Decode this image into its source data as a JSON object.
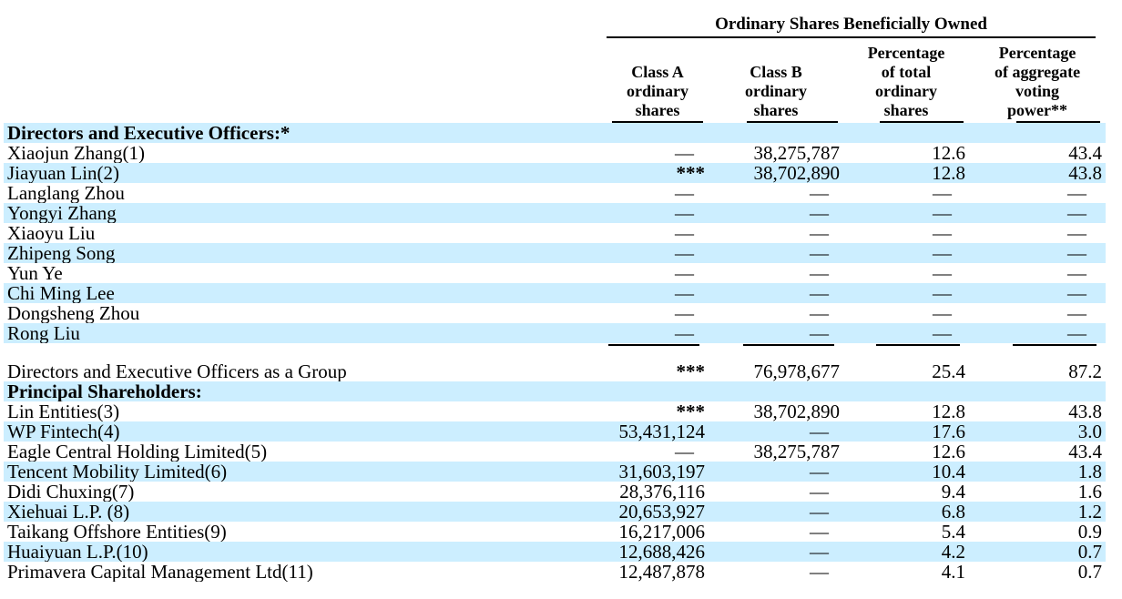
{
  "table": {
    "title": "Ordinary Shares Beneficially Owned",
    "columns": [
      {
        "label": "Class A\nordinary\nshares"
      },
      {
        "label": "Class B\nordinary\nshares"
      },
      {
        "label": "Percentage\nof total\nordinary\nshares"
      },
      {
        "label": "Percentage\nof aggregate\nvoting\npower**"
      }
    ],
    "rows": [
      {
        "type": "section",
        "shaded": true,
        "label": "Directors and Executive Officers:*",
        "values": [
          "",
          "",
          "",
          ""
        ]
      },
      {
        "type": "data",
        "shaded": false,
        "label": "Xiaojun Zhang(1)",
        "values": [
          "—",
          "38,275,787",
          "12.6",
          "43.4"
        ]
      },
      {
        "type": "data",
        "shaded": true,
        "label": "Jiayuan Lin(2)",
        "values": [
          "***",
          "38,702,890",
          "12.8",
          "43.8"
        ]
      },
      {
        "type": "data",
        "shaded": false,
        "label": "Langlang Zhou",
        "values": [
          "—",
          "—",
          "—",
          "—"
        ]
      },
      {
        "type": "data",
        "shaded": true,
        "label": "Yongyi Zhang",
        "values": [
          "—",
          "—",
          "—",
          "—"
        ]
      },
      {
        "type": "data",
        "shaded": false,
        "label": "Xiaoyu Liu",
        "values": [
          "—",
          "—",
          "—",
          "—"
        ]
      },
      {
        "type": "data",
        "shaded": true,
        "label": "Zhipeng Song",
        "values": [
          "—",
          "—",
          "—",
          "—"
        ]
      },
      {
        "type": "data",
        "shaded": false,
        "label": "Yun Ye",
        "values": [
          "—",
          "—",
          "—",
          "—"
        ]
      },
      {
        "type": "data",
        "shaded": true,
        "label": "Chi Ming Lee",
        "values": [
          "—",
          "—",
          "—",
          "—"
        ]
      },
      {
        "type": "data",
        "shaded": false,
        "label": "Dongsheng Zhou",
        "values": [
          "—",
          "—",
          "—",
          "—"
        ]
      },
      {
        "type": "data",
        "shaded": true,
        "label": "Rong Liu",
        "values": [
          "—",
          "—",
          "—",
          "—"
        ]
      },
      {
        "type": "separator",
        "shaded": false,
        "label": "",
        "values": [
          "",
          "",
          "",
          ""
        ]
      },
      {
        "type": "data",
        "shaded": false,
        "label": "Directors and Executive Officers as a Group",
        "values": [
          "***",
          "76,978,677",
          "25.4",
          "87.2"
        ]
      },
      {
        "type": "section",
        "shaded": true,
        "label": "Principal Shareholders:",
        "values": [
          "",
          "",
          "",
          ""
        ]
      },
      {
        "type": "data",
        "shaded": false,
        "label": "Lin Entities(3)",
        "values": [
          "***",
          "38,702,890",
          "12.8",
          "43.8"
        ]
      },
      {
        "type": "data",
        "shaded": true,
        "label": "WP Fintech(4)",
        "values": [
          "53,431,124",
          "—",
          "17.6",
          "3.0"
        ]
      },
      {
        "type": "data",
        "shaded": false,
        "label": "Eagle Central Holding Limited(5)",
        "values": [
          "—",
          "38,275,787",
          "12.6",
          "43.4"
        ]
      },
      {
        "type": "data",
        "shaded": true,
        "label": "Tencent Mobility Limited(6)",
        "values": [
          "31,603,197",
          "—",
          "10.4",
          "1.8"
        ]
      },
      {
        "type": "data",
        "shaded": false,
        "label": "Didi Chuxing(7)",
        "values": [
          "28,376,116",
          "—",
          "9.4",
          "1.6"
        ]
      },
      {
        "type": "data",
        "shaded": true,
        "label": "Xiehuai L.P. (8)",
        "values": [
          "20,653,927",
          "—",
          "6.8",
          "1.2"
        ]
      },
      {
        "type": "data",
        "shaded": false,
        "label": "Taikang Offshore Entities(9)",
        "values": [
          "16,217,006",
          "—",
          "5.4",
          "0.9"
        ]
      },
      {
        "type": "data",
        "shaded": true,
        "label": "Huaiyuan L.P.(10)",
        "values": [
          "12,688,426",
          "—",
          "4.2",
          "0.7"
        ]
      },
      {
        "type": "data",
        "shaded": false,
        "label": "Primavera Capital Management Ltd(11)",
        "values": [
          "12,487,878",
          "—",
          "4.1",
          "0.7"
        ]
      }
    ]
  }
}
